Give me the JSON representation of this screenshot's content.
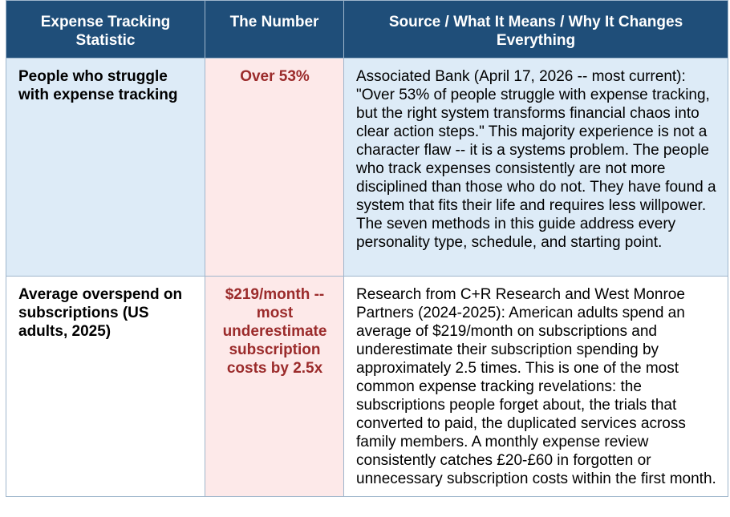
{
  "table": {
    "header": [
      "Expense Tracking Statistic",
      "The Number",
      "Source / What It Means / Why It Changes Everything"
    ],
    "rows": [
      [
        "People who struggle with expense tracking",
        "Over 53%",
        "Associated Bank (April 17, 2026 -- most current): \"Over 53% of people struggle with expense tracking, but the right system transforms financial chaos into clear action steps.\" This majority experience is not a character flaw -- it is a systems problem. The people who track expenses consistently are not more disciplined than those who do not. They have found a system that fits their life and requires less willpower. The seven methods in this guide address every personality type, schedule, and starting point."
      ],
      [
        "Average overspend on subscriptions (US adults, 2025)",
        "$219/month -- most underestimate subscription costs by 2.5x",
        "Research from C+R Research and West Monroe Partners (2024-2025): American adults spend an average of $219/month on subscriptions and underestimate their subscription spending by approximately 2.5 times. This is one of the most common expense tracking revelations: the subscriptions people forget about, the trials that converted to paid, the duplicated services across family members. A monthly expense review consistently catches £20-£60 in forgotten or unnecessary subscription costs within the first month."
      ]
    ]
  }
}
